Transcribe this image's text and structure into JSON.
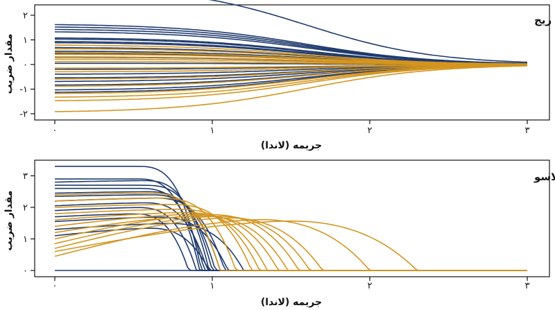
{
  "chart_data": [
    {
      "type": "line",
      "title": "تنظیم‌کننده ریج",
      "xlabel": "جریمه (لاندا)",
      "ylabel": "مقدار ضریب",
      "xlim": [
        0,
        3
      ],
      "ylim": [
        -2.3,
        3.5
      ],
      "xticks": [
        {
          "v": 0,
          "label": "۰"
        },
        {
          "v": 1,
          "label": "۱"
        },
        {
          "v": 2,
          "label": "۲"
        },
        {
          "v": 3,
          "label": "۳"
        }
      ],
      "yticks": [
        {
          "v": -2,
          "label": "-۲"
        },
        {
          "v": -1,
          "label": "-۱"
        },
        {
          "v": 0,
          "label": "۰"
        },
        {
          "v": 1,
          "label": "۱"
        },
        {
          "v": 2,
          "label": "۲"
        },
        {
          "v": 3,
          "label": "۳"
        }
      ],
      "decay": {
        "start": 1.6,
        "rate": 2.5
      },
      "colors": {
        "navy": "#1f3a6e",
        "gold": "#d4951f"
      },
      "series": [
        {
          "color": "navy",
          "start": 3.2
        },
        {
          "color": "navy",
          "start": 1.65
        },
        {
          "color": "navy",
          "start": 1.55
        },
        {
          "color": "navy",
          "start": 1.45
        },
        {
          "color": "navy",
          "start": 1.35
        },
        {
          "color": "navy",
          "start": 1.1
        },
        {
          "color": "navy",
          "start": 1.05
        },
        {
          "color": "navy",
          "start": 0.95
        },
        {
          "color": "navy",
          "start": 0.9
        },
        {
          "color": "navy",
          "start": 0.7
        },
        {
          "color": "navy",
          "start": 0.55
        },
        {
          "color": "navy",
          "start": 0.45
        },
        {
          "color": "navy",
          "start": 0.3
        },
        {
          "color": "navy",
          "start": 0.05
        },
        {
          "color": "navy",
          "start": -0.2
        },
        {
          "color": "navy",
          "start": -0.4
        },
        {
          "color": "navy",
          "start": -0.55
        },
        {
          "color": "navy",
          "start": -0.7
        },
        {
          "color": "navy",
          "start": -0.85
        },
        {
          "color": "navy",
          "start": -1.05
        },
        {
          "color": "navy",
          "start": -1.15
        },
        {
          "color": "gold",
          "start": 0.8
        },
        {
          "color": "gold",
          "start": 0.65
        },
        {
          "color": "gold",
          "start": 0.5
        },
        {
          "color": "gold",
          "start": 0.42
        },
        {
          "color": "gold",
          "start": 0.32
        },
        {
          "color": "gold",
          "start": 0.22
        },
        {
          "color": "gold",
          "start": 0.12
        },
        {
          "color": "gold",
          "start": -0.15
        },
        {
          "color": "gold",
          "start": -0.3
        },
        {
          "color": "gold",
          "start": -0.6
        },
        {
          "color": "gold",
          "start": -0.9
        },
        {
          "color": "gold",
          "start": -1.2
        },
        {
          "color": "gold",
          "start": -1.35
        },
        {
          "color": "gold",
          "start": -1.5
        },
        {
          "color": "gold",
          "start": -1.95
        }
      ]
    },
    {
      "type": "line",
      "title": "تنظیم‌کننده لاسو",
      "xlabel": "جریمه (لاندا)",
      "ylabel": "مقدار ضریب",
      "xlim": [
        0,
        3
      ],
      "ylim": [
        -0.25,
        3.5
      ],
      "xticks": [
        {
          "v": 0,
          "label": "۰"
        },
        {
          "v": 1,
          "label": "۱"
        },
        {
          "v": 2,
          "label": "۲"
        },
        {
          "v": 3,
          "label": "۳"
        }
      ],
      "yticks": [
        {
          "v": 0,
          "label": "۰"
        },
        {
          "v": 1,
          "label": "۱"
        },
        {
          "v": 2,
          "label": "۲"
        },
        {
          "v": 3,
          "label": "۳"
        }
      ],
      "colors": {
        "navy": "#1f3a6e",
        "gold": "#d4951f"
      },
      "series": [
        {
          "color": "navy",
          "start": 3.3,
          "peak": 3.3,
          "zero": 0.93
        },
        {
          "color": "navy",
          "start": 2.9,
          "peak": 2.9,
          "zero": 0.92
        },
        {
          "color": "navy",
          "start": 2.8,
          "peak": 2.85,
          "zero": 0.98
        },
        {
          "color": "navy",
          "start": 2.7,
          "peak": 2.7,
          "zero": 1.0
        },
        {
          "color": "navy",
          "start": 2.6,
          "peak": 2.6,
          "zero": 0.95
        },
        {
          "color": "navy",
          "start": 2.45,
          "peak": 2.5,
          "zero": 1.02
        },
        {
          "color": "navy",
          "start": 2.35,
          "peak": 2.4,
          "zero": 1.05
        },
        {
          "color": "navy",
          "start": 2.2,
          "peak": 2.3,
          "zero": 1.08
        },
        {
          "color": "navy",
          "start": 2.05,
          "peak": 2.15,
          "zero": 0.97
        },
        {
          "color": "navy",
          "start": 1.9,
          "peak": 2.0,
          "zero": 0.9
        },
        {
          "color": "navy",
          "start": 1.7,
          "peak": 1.8,
          "zero": 0.85
        },
        {
          "color": "navy",
          "start": 1.55,
          "peak": 1.7,
          "zero": 1.1
        },
        {
          "color": "navy",
          "start": 1.3,
          "peak": 1.5,
          "zero": 1.2
        },
        {
          "color": "navy",
          "start": 1.1,
          "peak": 1.35,
          "zero": 0.98
        },
        {
          "color": "navy",
          "start": 0.0,
          "peak": 0.0,
          "zero": 0.0
        },
        {
          "color": "gold",
          "start": 2.4,
          "peak": 2.45,
          "zero": 1.05
        },
        {
          "color": "gold",
          "start": 2.2,
          "peak": 2.3,
          "zero": 1.15
        },
        {
          "color": "gold",
          "start": 2.0,
          "peak": 2.1,
          "zero": 1.25
        },
        {
          "color": "gold",
          "start": 1.8,
          "peak": 1.95,
          "zero": 1.3
        },
        {
          "color": "gold",
          "start": 1.6,
          "peak": 1.85,
          "zero": 1.35
        },
        {
          "color": "gold",
          "start": 1.4,
          "peak": 1.8,
          "zero": 1.42
        },
        {
          "color": "gold",
          "start": 1.2,
          "peak": 1.75,
          "zero": 1.48
        },
        {
          "color": "gold",
          "start": 1.0,
          "peak": 1.8,
          "zero": 1.55
        },
        {
          "color": "gold",
          "start": 0.85,
          "peak": 1.75,
          "zero": 1.62
        },
        {
          "color": "gold",
          "start": 0.7,
          "peak": 1.7,
          "zero": 1.7
        },
        {
          "color": "gold",
          "start": 0.45,
          "peak": 1.65,
          "zero": 2.0
        },
        {
          "color": "gold",
          "start": 0.6,
          "peak": 1.6,
          "zero": 2.3
        }
      ]
    }
  ]
}
